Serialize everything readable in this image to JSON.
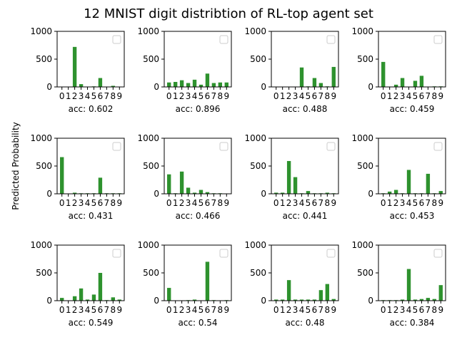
{
  "title": "12 MNIST digit distribtion of RL-top agent set",
  "ylabel": "Predicted Probability",
  "colors": {
    "bar": "#2e922e",
    "axis": "#000000",
    "legend_border": "#cccccc"
  },
  "chart_data": [
    {
      "type": "bar",
      "categories": [
        "0",
        "1",
        "2",
        "3",
        "4",
        "5",
        "6",
        "7",
        "8",
        "9"
      ],
      "values": [
        0,
        0,
        720,
        50,
        0,
        10,
        160,
        0,
        20,
        0
      ],
      "ylim": [
        0,
        1000
      ],
      "yticks": [
        0,
        500,
        1000
      ],
      "xlabel": "acc: 0.602",
      "legend": "top-right"
    },
    {
      "type": "bar",
      "categories": [
        "0",
        "1",
        "2",
        "3",
        "4",
        "5",
        "6",
        "7",
        "8",
        "9"
      ],
      "values": [
        80,
        90,
        120,
        70,
        130,
        40,
        240,
        70,
        80,
        80
      ],
      "ylim": [
        0,
        1000
      ],
      "yticks": [
        0,
        500,
        1000
      ],
      "xlabel": "acc: 0.896",
      "legend": "top-right"
    },
    {
      "type": "bar",
      "categories": [
        "0",
        "1",
        "2",
        "3",
        "4",
        "5",
        "6",
        "7",
        "8",
        "9"
      ],
      "values": [
        0,
        0,
        0,
        0,
        350,
        10,
        160,
        70,
        10,
        360
      ],
      "ylim": [
        0,
        1000
      ],
      "yticks": [
        0,
        500,
        1000
      ],
      "xlabel": "acc: 0.488",
      "legend": "top-right"
    },
    {
      "type": "bar",
      "categories": [
        "0",
        "1",
        "2",
        "3",
        "4",
        "5",
        "6",
        "7",
        "8",
        "9"
      ],
      "values": [
        450,
        0,
        40,
        160,
        0,
        110,
        200,
        0,
        10,
        10
      ],
      "ylim": [
        0,
        1000
      ],
      "yticks": [
        0,
        500,
        1000
      ],
      "xlabel": "acc: 0.459",
      "legend": "top-right"
    },
    {
      "type": "bar",
      "categories": [
        "0",
        "1",
        "2",
        "3",
        "4",
        "5",
        "6",
        "7",
        "8",
        "9"
      ],
      "values": [
        660,
        0,
        20,
        10,
        10,
        10,
        290,
        10,
        10,
        10
      ],
      "ylim": [
        0,
        1000
      ],
      "yticks": [
        0,
        500,
        1000
      ],
      "xlabel": "acc: 0.431",
      "legend": "top-right"
    },
    {
      "type": "bar",
      "categories": [
        "0",
        "1",
        "2",
        "3",
        "4",
        "5",
        "6",
        "7",
        "8",
        "9"
      ],
      "values": [
        350,
        10,
        400,
        110,
        20,
        70,
        30,
        10,
        10,
        0
      ],
      "ylim": [
        0,
        1000
      ],
      "yticks": [
        0,
        500,
        1000
      ],
      "xlabel": "acc: 0.466",
      "legend": "top-right"
    },
    {
      "type": "bar",
      "categories": [
        "0",
        "1",
        "2",
        "3",
        "4",
        "5",
        "6",
        "7",
        "8",
        "9"
      ],
      "values": [
        20,
        20,
        590,
        300,
        10,
        50,
        10,
        10,
        20,
        10
      ],
      "ylim": [
        0,
        1000
      ],
      "yticks": [
        0,
        500,
        1000
      ],
      "xlabel": "acc: 0.441",
      "legend": "top-right"
    },
    {
      "type": "bar",
      "categories": [
        "0",
        "1",
        "2",
        "3",
        "4",
        "5",
        "6",
        "7",
        "8",
        "9"
      ],
      "values": [
        10,
        40,
        70,
        10,
        430,
        10,
        10,
        360,
        10,
        50
      ],
      "ylim": [
        0,
        1000
      ],
      "yticks": [
        0,
        500,
        1000
      ],
      "xlabel": "acc: 0.453",
      "legend": "top-right"
    },
    {
      "type": "bar",
      "categories": [
        "0",
        "1",
        "2",
        "3",
        "4",
        "5",
        "6",
        "7",
        "8",
        "9"
      ],
      "values": [
        50,
        0,
        80,
        220,
        20,
        110,
        500,
        10,
        60,
        20
      ],
      "ylim": [
        0,
        1000
      ],
      "yticks": [
        0,
        500,
        1000
      ],
      "xlabel": "acc: 0.549",
      "legend": "top-right"
    },
    {
      "type": "bar",
      "categories": [
        "0",
        "1",
        "2",
        "3",
        "4",
        "5",
        "6",
        "7",
        "8",
        "9"
      ],
      "values": [
        230,
        0,
        0,
        10,
        20,
        0,
        700,
        10,
        0,
        10
      ],
      "ylim": [
        0,
        1000
      ],
      "yticks": [
        0,
        500,
        1000
      ],
      "xlabel": "acc: 0.54",
      "legend": "top-right"
    },
    {
      "type": "bar",
      "categories": [
        "0",
        "1",
        "2",
        "3",
        "4",
        "5",
        "6",
        "7",
        "8",
        "9"
      ],
      "values": [
        20,
        20,
        370,
        20,
        20,
        20,
        20,
        190,
        300,
        30
      ],
      "ylim": [
        0,
        1000
      ],
      "yticks": [
        0,
        500,
        1000
      ],
      "xlabel": "acc: 0.48",
      "legend": "top-right"
    },
    {
      "type": "bar",
      "categories": [
        "0",
        "1",
        "2",
        "3",
        "4",
        "5",
        "6",
        "7",
        "8",
        "9"
      ],
      "values": [
        10,
        10,
        10,
        20,
        570,
        20,
        30,
        50,
        30,
        280
      ],
      "ylim": [
        0,
        1000
      ],
      "yticks": [
        0,
        500,
        1000
      ],
      "xlabel": "acc: 0.384",
      "legend": "top-right"
    }
  ]
}
